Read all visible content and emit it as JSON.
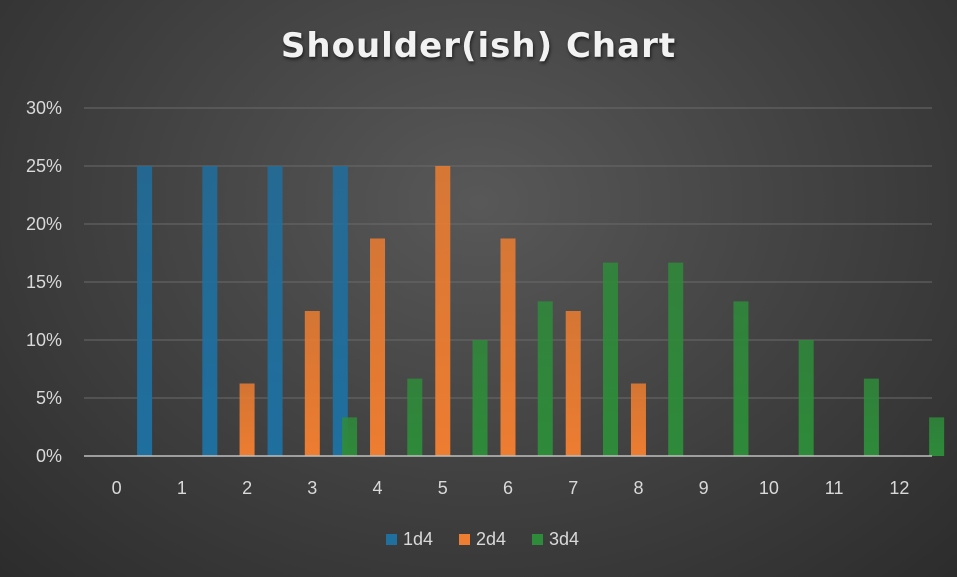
{
  "chart_data": {
    "type": "bar",
    "title": "Shoulder(ish) Chart",
    "xlabel": "",
    "ylabel": "",
    "categories": [
      "0",
      "1",
      "2",
      "3",
      "4",
      "5",
      "6",
      "7",
      "8",
      "9",
      "10",
      "11",
      "12"
    ],
    "yticks": [
      "0%",
      "5%",
      "10%",
      "15%",
      "20%",
      "25%",
      "30%"
    ],
    "ylim": [
      0,
      0.3
    ],
    "grid": true,
    "legend_position": "bottom",
    "series": [
      {
        "name": "1d4",
        "color": "#1f6f9f",
        "values": [
          0,
          0.25,
          0.25,
          0.25,
          0.25,
          0,
          0,
          0,
          0,
          0,
          0,
          0,
          0
        ]
      },
      {
        "name": "2d4",
        "color": "#ed7d31",
        "values": [
          0,
          0,
          0.0625,
          0.125,
          0.1875,
          0.25,
          0.1875,
          0.125,
          0.0625,
          0,
          0,
          0,
          0
        ]
      },
      {
        "name": "3d4",
        "color": "#2e8b3a",
        "values": [
          0,
          0,
          0,
          0.0333,
          0.0667,
          0.1,
          0.1333,
          0.1667,
          0.1667,
          0.1333,
          0.1,
          0.0667,
          0.0333
        ]
      }
    ]
  }
}
